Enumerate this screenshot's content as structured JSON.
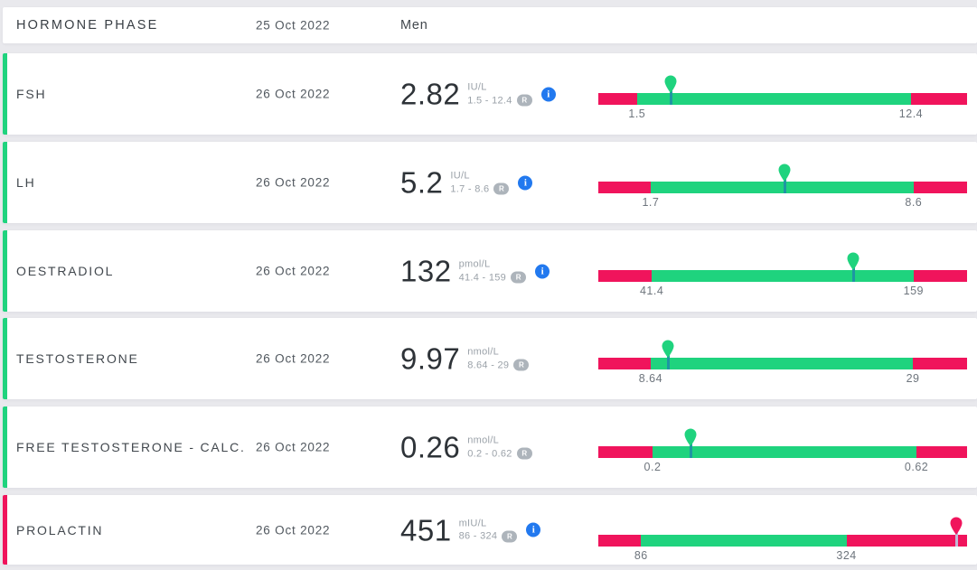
{
  "header": {
    "title": "HORMONE PHASE",
    "date": "25 Oct 2022",
    "group_label": "Men"
  },
  "icons": {
    "info_glyph": "i",
    "range_badge_glyph": "R"
  },
  "colors": {
    "page_bg": "#E9E9ED",
    "card_bg": "#FFFFFF",
    "in_range_green": "#1FD37E",
    "out_of_range_pink": "#F0145C",
    "pin_stem_in_range": "#1E96A3",
    "pin_stem_out_of_range": "#C0B8D6",
    "info_blue": "#2279EF",
    "badge_gray": "#ADB4BB"
  },
  "rows": [
    {
      "name": "FSH",
      "date": "26 Oct 2022",
      "value": "2.82",
      "unit": "IU/L",
      "range": "1.5 - 12.4",
      "status": "in-range",
      "has_info": true,
      "bar": {
        "min": 1.5,
        "max": 12.4,
        "result": 2.82,
        "min_label": "1.5",
        "max_label": "12.4",
        "low_pct": 10.5,
        "high_pct": 84.8,
        "pin_pct": 19.6
      }
    },
    {
      "name": "LH",
      "date": "26 Oct 2022",
      "value": "5.2",
      "unit": "IU/L",
      "range": "1.7 - 8.6",
      "status": "in-range",
      "has_info": true,
      "bar": {
        "min": 1.7,
        "max": 8.6,
        "result": 5.2,
        "min_label": "1.7",
        "max_label": "8.6",
        "low_pct": 14.2,
        "high_pct": 85.5,
        "pin_pct": 50.4
      }
    },
    {
      "name": "OESTRADIOL",
      "date": "26 Oct 2022",
      "value": "132",
      "unit": "pmol/L",
      "range": "41.4 - 159",
      "status": "in-range",
      "has_info": true,
      "bar": {
        "min": 41.4,
        "max": 159,
        "result": 132,
        "min_label": "41.4",
        "max_label": "159",
        "low_pct": 14.5,
        "high_pct": 85.5,
        "pin_pct": 69.2
      }
    },
    {
      "name": "TESTOSTERONE",
      "date": "26 Oct 2022",
      "value": "9.97",
      "unit": "nmol/L",
      "range": "8.64 - 29",
      "status": "in-range",
      "has_info": false,
      "bar": {
        "min": 8.64,
        "max": 29,
        "result": 9.97,
        "min_label": "8.64",
        "max_label": "29",
        "low_pct": 14.2,
        "high_pct": 85.3,
        "pin_pct": 18.8
      }
    },
    {
      "name": "FREE TESTOSTERONE - CALC.",
      "date": "26 Oct 2022",
      "value": "0.26",
      "unit": "nmol/L",
      "range": "0.2 - 0.62",
      "status": "in-range",
      "has_info": false,
      "bar": {
        "min": 0.2,
        "max": 0.62,
        "result": 0.26,
        "min_label": "0.2",
        "max_label": "0.62",
        "low_pct": 14.7,
        "high_pct": 86.3,
        "pin_pct": 24.9
      }
    },
    {
      "name": "PROLACTIN",
      "date": "26 Oct 2022",
      "value": "451",
      "unit": "mIU/L",
      "range": "86 - 324",
      "status": "out-of-range",
      "has_info": true,
      "bar": {
        "min": 86,
        "max": 324,
        "result": 451,
        "min_label": "86",
        "max_label": "324",
        "low_pct": 11.6,
        "high_pct": 67.3,
        "pin_pct": 97.0
      }
    }
  ]
}
